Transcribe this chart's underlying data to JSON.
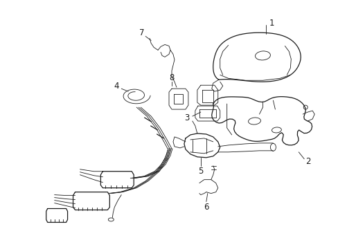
{
  "background_color": "#ffffff",
  "line_color": "#1a1a1a",
  "lw": 0.9,
  "tlw": 0.6,
  "label_fontsize": 8.5,
  "fig_width": 4.89,
  "fig_height": 3.6,
  "dpi": 100
}
